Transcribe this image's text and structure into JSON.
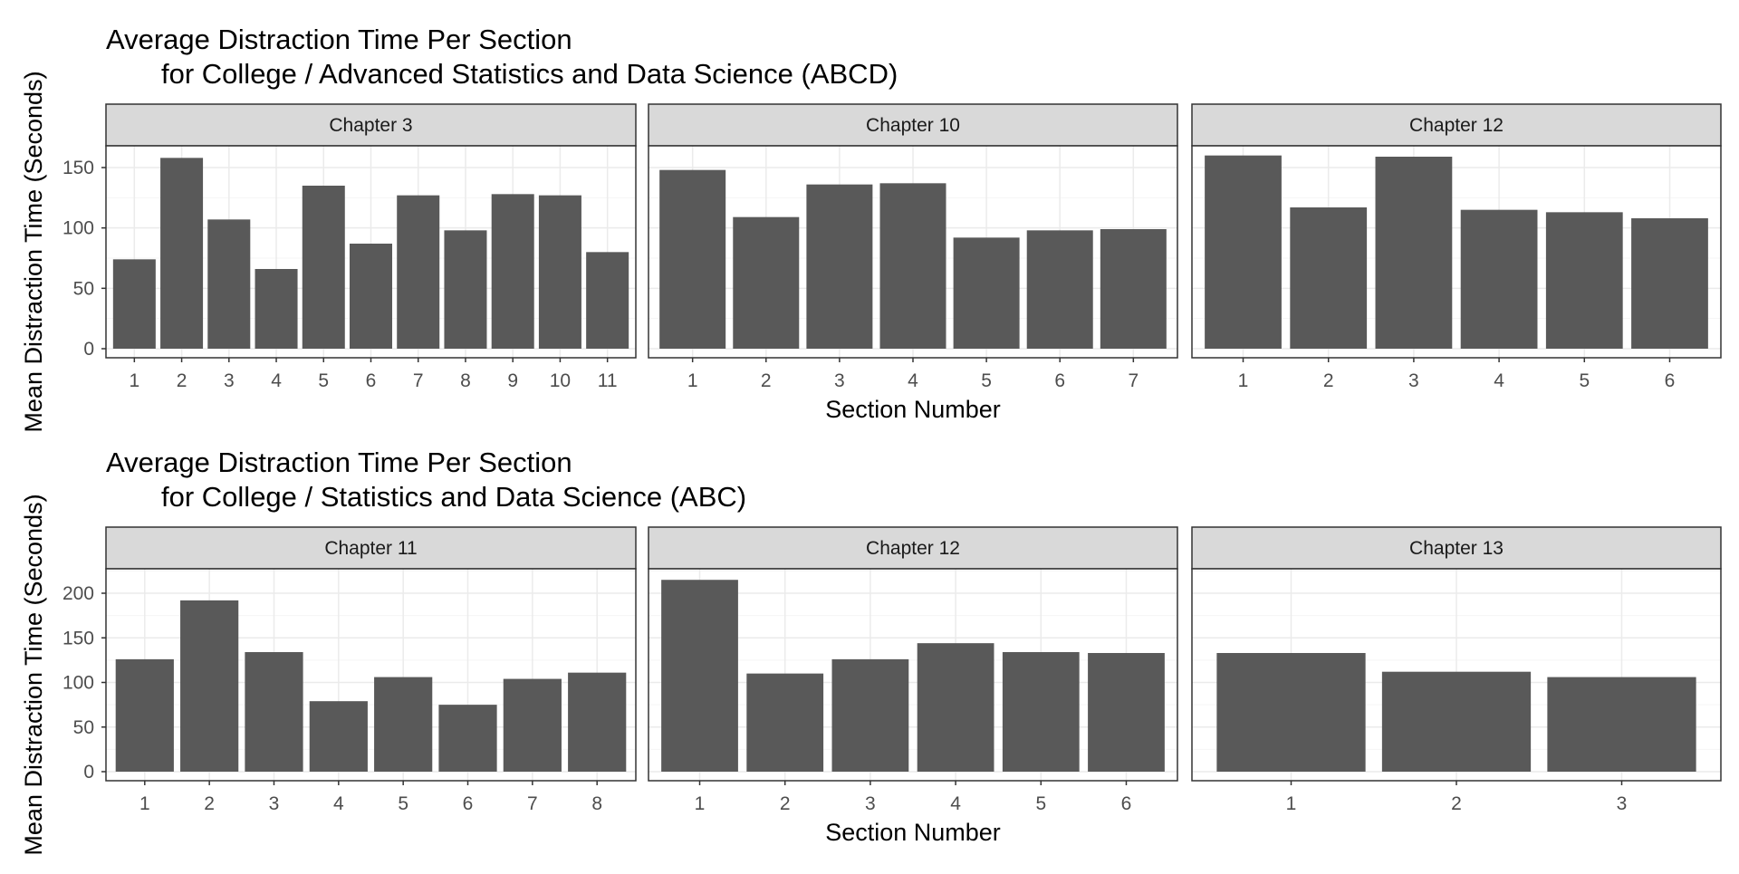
{
  "chart_data": [
    {
      "type": "bar",
      "title": "Average Distraction Time Per Section",
      "subtitle": "for College / Advanced Statistics and Data Science (ABCD)",
      "xlabel": "Section Number",
      "ylabel": "Mean Distraction Time (Seconds)",
      "y_ticks": [
        0,
        50,
        100,
        150
      ],
      "grid": true,
      "facets": [
        {
          "label": "Chapter 3",
          "categories": [
            "1",
            "2",
            "3",
            "4",
            "5",
            "6",
            "7",
            "8",
            "9",
            "10",
            "11"
          ],
          "values": [
            74,
            158,
            107,
            66,
            135,
            87,
            127,
            98,
            128,
            127,
            80
          ]
        },
        {
          "label": "Chapter 10",
          "categories": [
            "1",
            "2",
            "3",
            "4",
            "5",
            "6",
            "7"
          ],
          "values": [
            148,
            109,
            136,
            137,
            92,
            98,
            99
          ]
        },
        {
          "label": "Chapter 12",
          "categories": [
            "1",
            "2",
            "3",
            "4",
            "5",
            "6"
          ],
          "values": [
            160,
            117,
            159,
            115,
            113,
            108
          ]
        }
      ]
    },
    {
      "type": "bar",
      "title": "Average Distraction Time Per Section",
      "subtitle": "for College / Statistics and Data Science (ABC)",
      "xlabel": "Section Number",
      "ylabel": "Mean Distraction Time (Seconds)",
      "y_ticks": [
        0,
        50,
        100,
        150,
        200
      ],
      "grid": true,
      "facets": [
        {
          "label": "Chapter 11",
          "categories": [
            "1",
            "2",
            "3",
            "4",
            "5",
            "6",
            "7",
            "8"
          ],
          "values": [
            126,
            192,
            134,
            79,
            106,
            75,
            104,
            111
          ]
        },
        {
          "label": "Chapter 12",
          "categories": [
            "1",
            "2",
            "3",
            "4",
            "5",
            "6"
          ],
          "values": [
            215,
            110,
            126,
            144,
            134,
            133
          ]
        },
        {
          "label": "Chapter 13",
          "categories": [
            "1",
            "2",
            "3"
          ],
          "values": [
            133,
            112,
            106
          ]
        }
      ]
    }
  ],
  "colors": {
    "bar": "#595959",
    "strip_background": "#d9d9d9",
    "grid_major": "#ebebeb",
    "grid_minor": "#f5f5f5",
    "panel_border": "#333333"
  }
}
